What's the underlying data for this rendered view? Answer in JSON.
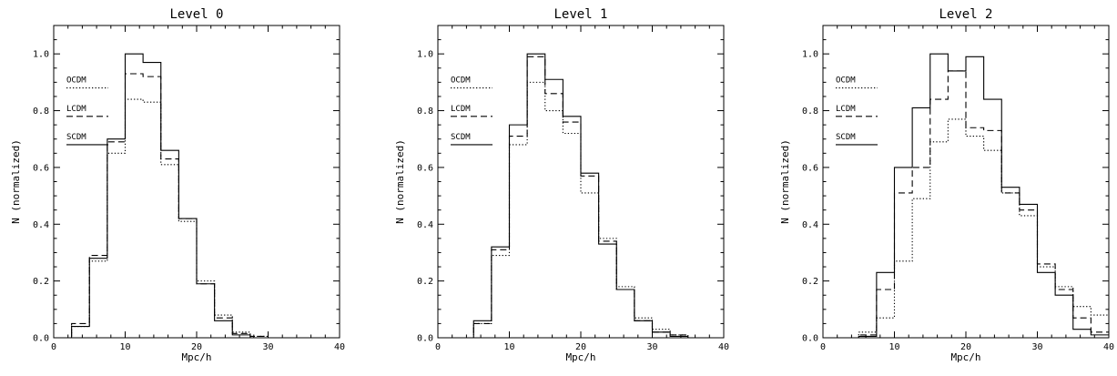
{
  "chart_data": [
    {
      "type": "histogram",
      "title": "Level 0",
      "xlabel": "Mpc/h",
      "ylabel": "N (normalized)",
      "xlim": [
        0,
        40
      ],
      "ylim": [
        0,
        1.1
      ],
      "x_ticks": [
        "0",
        "10",
        "20",
        "30",
        "40"
      ],
      "y_ticks": [
        "0.0",
        "0.2",
        "0.4",
        "0.6",
        "0.8",
        "1.0"
      ],
      "bin_width": 2.5,
      "bin_edges": [
        0,
        2.5,
        5,
        7.5,
        10,
        12.5,
        15,
        17.5,
        20,
        22.5,
        25,
        27.5,
        30,
        32.5,
        35,
        37.5,
        40
      ],
      "legend": [
        "OCDM",
        "LCDM",
        "SCDM"
      ],
      "legend_position": "left",
      "series": [
        {
          "name": "OCDM",
          "style": "dotted",
          "values": [
            0.0,
            0.04,
            0.27,
            0.65,
            0.84,
            0.83,
            0.61,
            0.41,
            0.2,
            0.08,
            0.02,
            0.005,
            0.0,
            0.0,
            0.0,
            0.0
          ]
        },
        {
          "name": "LCDM",
          "style": "dashed",
          "values": [
            0.0,
            0.05,
            0.29,
            0.69,
            0.93,
            0.92,
            0.63,
            0.42,
            0.19,
            0.07,
            0.015,
            0.005,
            0.0,
            0.0,
            0.0,
            0.0
          ]
        },
        {
          "name": "SCDM",
          "style": "solid",
          "values": [
            0.0,
            0.04,
            0.28,
            0.7,
            1.0,
            0.97,
            0.66,
            0.42,
            0.19,
            0.06,
            0.01,
            0.0,
            0.0,
            0.0,
            0.0,
            0.0
          ]
        }
      ]
    },
    {
      "type": "histogram",
      "title": "Level 1",
      "xlabel": "Mpc/h",
      "ylabel": "N (normalized)",
      "xlim": [
        0,
        40
      ],
      "ylim": [
        0,
        1.1
      ],
      "x_ticks": [
        "0",
        "10",
        "20",
        "30",
        "40"
      ],
      "y_ticks": [
        "0.0",
        "0.2",
        "0.4",
        "0.6",
        "0.8",
        "1.0"
      ],
      "bin_width": 2.5,
      "bin_edges": [
        0,
        2.5,
        5,
        7.5,
        10,
        12.5,
        15,
        17.5,
        20,
        22.5,
        25,
        27.5,
        30,
        32.5,
        35,
        37.5,
        40
      ],
      "legend": [
        "OCDM",
        "LCDM",
        "SCDM"
      ],
      "legend_position": "left",
      "series": [
        {
          "name": "OCDM",
          "style": "dotted",
          "values": [
            0.0,
            0.0,
            0.05,
            0.29,
            0.68,
            0.9,
            0.8,
            0.72,
            0.51,
            0.35,
            0.18,
            0.07,
            0.03,
            0.01,
            0.0,
            0.0
          ]
        },
        {
          "name": "LCDM",
          "style": "dashed",
          "values": [
            0.0,
            0.0,
            0.05,
            0.31,
            0.71,
            0.99,
            0.86,
            0.76,
            0.57,
            0.34,
            0.17,
            0.06,
            0.02,
            0.01,
            0.0,
            0.0
          ]
        },
        {
          "name": "SCDM",
          "style": "solid",
          "values": [
            0.0,
            0.0,
            0.06,
            0.32,
            0.75,
            1.0,
            0.91,
            0.78,
            0.58,
            0.33,
            0.17,
            0.06,
            0.02,
            0.005,
            0.0,
            0.0
          ]
        }
      ]
    },
    {
      "type": "histogram",
      "title": "Level 2",
      "xlabel": "Mpc/h",
      "ylabel": "N (normalized)",
      "xlim": [
        0,
        40
      ],
      "ylim": [
        0,
        1.1
      ],
      "x_ticks": [
        "0",
        "10",
        "20",
        "30",
        "40"
      ],
      "y_ticks": [
        "0.0",
        "0.2",
        "0.4",
        "0.6",
        "0.8",
        "1.0"
      ],
      "bin_width": 2.5,
      "bin_edges": [
        0,
        2.5,
        5,
        7.5,
        10,
        12.5,
        15,
        17.5,
        20,
        22.5,
        25,
        27.5,
        30,
        32.5,
        35,
        37.5,
        40
      ],
      "legend": [
        "OCDM",
        "LCDM",
        "SCDM"
      ],
      "legend_position": "left",
      "series": [
        {
          "name": "OCDM",
          "style": "dotted",
          "values": [
            0.0,
            0.0,
            0.02,
            0.07,
            0.27,
            0.49,
            0.69,
            0.77,
            0.71,
            0.66,
            0.51,
            0.43,
            0.25,
            0.18,
            0.11,
            0.08
          ]
        },
        {
          "name": "LCDM",
          "style": "dashed",
          "values": [
            0.0,
            0.0,
            0.01,
            0.17,
            0.51,
            0.6,
            0.84,
            0.94,
            0.74,
            0.73,
            0.51,
            0.45,
            0.26,
            0.17,
            0.07,
            0.02
          ]
        },
        {
          "name": "SCDM",
          "style": "solid",
          "values": [
            0.0,
            0.0,
            0.005,
            0.23,
            0.6,
            0.81,
            1.0,
            0.94,
            0.99,
            0.84,
            0.53,
            0.47,
            0.23,
            0.15,
            0.03,
            0.01
          ]
        }
      ]
    }
  ]
}
